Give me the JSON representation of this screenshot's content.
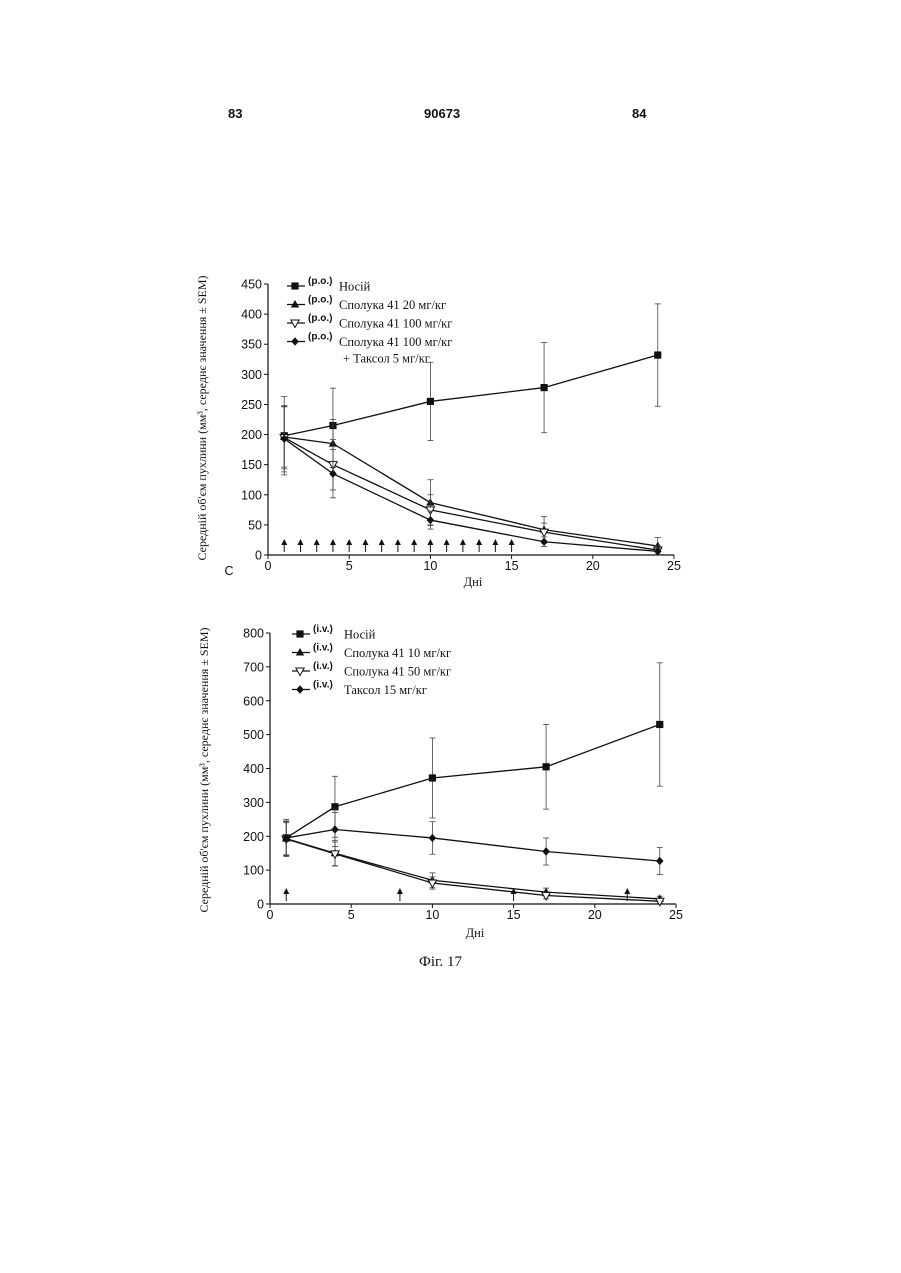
{
  "header": {
    "left_page": "83",
    "doc_number": "90673",
    "right_page": "84"
  },
  "caption": "Фіг. 17",
  "stray_mark": "С",
  "chart_data": [
    {
      "type": "line",
      "xlabel": "Дні",
      "ylabel": "Середній об'єм пухлини (мм³, середнє значення ± SEM)",
      "xlim": [
        0,
        25
      ],
      "ylim": [
        0,
        450
      ],
      "xticks": [
        "0",
        "5",
        "10",
        "15",
        "20",
        "25"
      ],
      "yticks": [
        "0",
        "50",
        "100",
        "150",
        "200",
        "250",
        "300",
        "350",
        "400",
        "450"
      ],
      "dosing_days": [
        1,
        2,
        3,
        4,
        5,
        6,
        7,
        8,
        9,
        10,
        11,
        12,
        13,
        14,
        15
      ],
      "legend_position": "top-left",
      "series": [
        {
          "name": "Носій",
          "route": "(p.o.)",
          "extra": "",
          "marker": "square",
          "x": [
            1,
            4,
            10,
            17,
            24
          ],
          "y": [
            198,
            215,
            255,
            278,
            332
          ],
          "err": [
            65,
            62,
            65,
            75,
            85
          ]
        },
        {
          "name": "Сполука 41 20 мг/кг",
          "route": "(p.o.)",
          "extra": "",
          "marker": "triangle-up",
          "x": [
            1,
            4,
            10,
            17,
            24
          ],
          "y": [
            196,
            185,
            87,
            42,
            15
          ],
          "err": [
            50,
            40,
            38,
            22,
            14
          ]
        },
        {
          "name": "Сполука 41 100 мг/кг",
          "route": "(p.o.)",
          "extra": "",
          "marker": "triangle-down-open",
          "x": [
            1,
            4,
            10,
            17,
            24
          ],
          "y": [
            195,
            150,
            75,
            38,
            8
          ],
          "err": [
            52,
            42,
            25,
            15,
            8
          ]
        },
        {
          "name": "Сполука 41 100 мг/кг",
          "route": "(p.o.)",
          "extra": "+ Таксол 5 мг/кг",
          "marker": "diamond",
          "x": [
            1,
            4,
            10,
            17,
            24
          ],
          "y": [
            193,
            135,
            58,
            22,
            6
          ],
          "err": [
            55,
            40,
            15,
            8,
            5
          ]
        }
      ]
    },
    {
      "type": "line",
      "xlabel": "Дні",
      "ylabel": "Середній об'єм пухлини (мм³, середнє значення ± SEM)",
      "xlim": [
        0,
        25
      ],
      "ylim": [
        0,
        800
      ],
      "xticks": [
        "0",
        "5",
        "10",
        "15",
        "20",
        "25"
      ],
      "yticks": [
        "0",
        "100",
        "200",
        "300",
        "400",
        "500",
        "600",
        "700",
        "800"
      ],
      "dosing_days": [
        1,
        8,
        15,
        22
      ],
      "legend_position": "top-left",
      "series": [
        {
          "name": "Носій",
          "route": "(i.v.)",
          "extra": "",
          "marker": "square",
          "x": [
            1,
            4,
            10,
            17,
            24
          ],
          "y": [
            195,
            287,
            372,
            405,
            530
          ],
          "err": [
            55,
            90,
            118,
            125,
            182
          ]
        },
        {
          "name": "Сполука 41 10 мг/кг",
          "route": "(i.v.)",
          "extra": "",
          "marker": "triangle-up",
          "x": [
            1,
            4,
            10,
            17,
            24
          ],
          "y": [
            193,
            150,
            70,
            35,
            15
          ],
          "err": [
            50,
            38,
            22,
            12,
            8
          ]
        },
        {
          "name": "Сполука 41 50 мг/кг",
          "route": "(i.v.)",
          "extra": "",
          "marker": "triangle-down-open",
          "x": [
            1,
            4,
            10,
            17,
            24
          ],
          "y": [
            192,
            148,
            62,
            25,
            8
          ],
          "err": [
            48,
            35,
            18,
            10,
            6
          ]
        },
        {
          "name": "Таксол 15 мг/кг",
          "route": "(i.v.)",
          "extra": "",
          "marker": "diamond",
          "x": [
            1,
            4,
            10,
            17,
            24
          ],
          "y": [
            195,
            220,
            195,
            155,
            127
          ],
          "err": [
            50,
            50,
            48,
            40,
            40
          ]
        }
      ]
    }
  ]
}
